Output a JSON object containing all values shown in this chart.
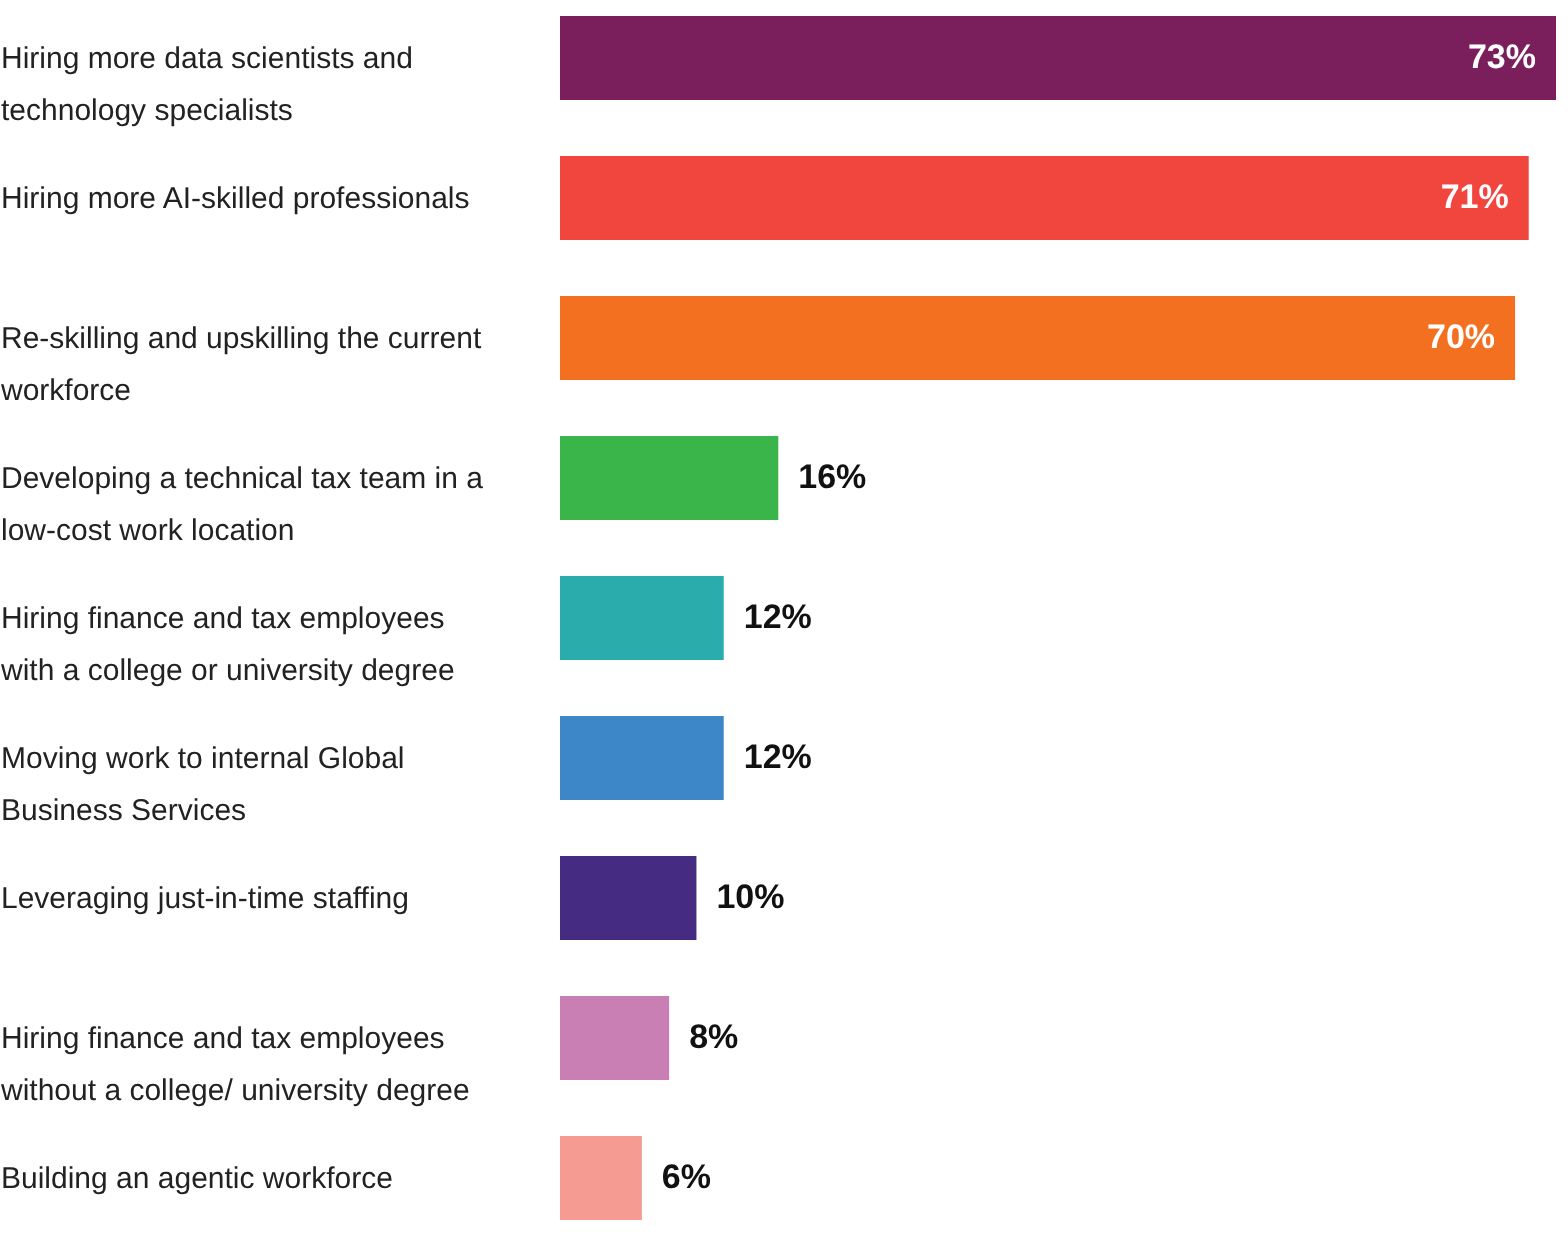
{
  "chart_data": {
    "type": "bar",
    "orientation": "horizontal",
    "value_labels": [
      "73%",
      "71%",
      "70%",
      "16%",
      "12%",
      "12%",
      "10%",
      "8%",
      "6%"
    ],
    "categories": [
      "Hiring more data scientists and technology specialists",
      "Hiring more AI-skilled professionals",
      "Re-skilling and upskilling the current workforce",
      "Developing a technical tax team in a low-cost work location",
      "Hiring finance and tax employees with a college or university degree",
      "Moving work to internal Global Business Services",
      "Leveraging just-in-time staffing",
      "Hiring finance and tax employees without a college/ university degree",
      "Building an agentic workforce"
    ],
    "values": [
      73,
      71,
      70,
      16,
      12,
      12,
      10,
      8,
      6
    ],
    "colors": [
      "#7a1f5c",
      "#f0463e",
      "#f37021",
      "#3ab54a",
      "#2aacad",
      "#3d87c9",
      "#452b82",
      "#c97fb3",
      "#f59b91"
    ]
  }
}
